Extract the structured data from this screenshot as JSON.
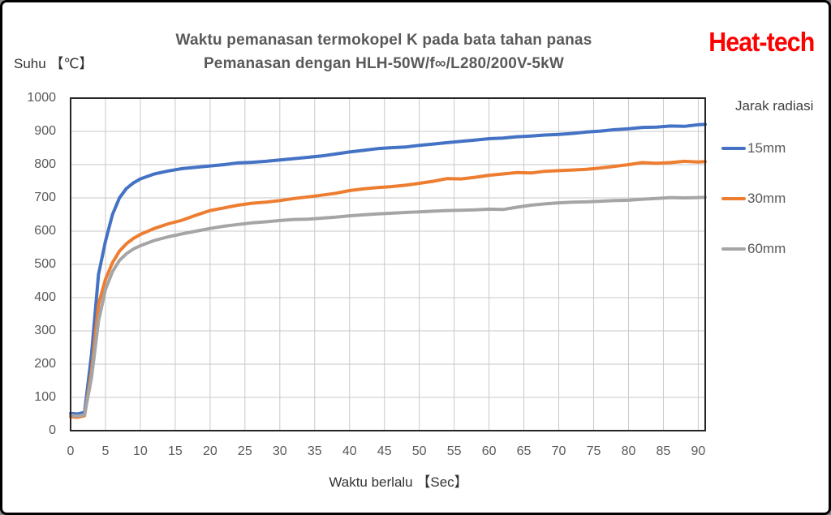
{
  "header": {
    "title_line1": "Waktu pemanasan termokopel K pada bata tahan panas",
    "title_line2": "Pemanasan dengan HLH-50W/f∞/L280/200V-5kW",
    "logo_text": "Heat-tech",
    "logo_color": "#FF0000"
  },
  "axes": {
    "y_axis_title": "Suhu 【℃】",
    "x_axis_title": "Waktu berlalu 【Sec】"
  },
  "legend": {
    "title": "Jarak radiasi"
  },
  "colors": {
    "series_blue": "#4472C4",
    "series_orange": "#ED7D31",
    "series_gray": "#A5A5A5",
    "gridline": "#C9C9C9",
    "plot_frame": "#262626",
    "tick_text": "#595959"
  },
  "chart_data": {
    "type": "line",
    "title": "Waktu pemanasan termokopel K pada bata tahan panas — Pemanasan dengan HLH-50W/f∞/L280/200V-5kW",
    "xlabel": "Waktu berlalu 【Sec】",
    "ylabel": "Suhu 【℃】",
    "xlim": [
      0,
      91
    ],
    "ylim": [
      0,
      1000
    ],
    "x_ticks": [
      0,
      5,
      10,
      15,
      20,
      25,
      30,
      35,
      40,
      45,
      50,
      55,
      60,
      65,
      70,
      75,
      80,
      85,
      90
    ],
    "y_ticks": [
      0,
      100,
      200,
      300,
      400,
      500,
      600,
      700,
      800,
      900,
      1000
    ],
    "grid": true,
    "legend_title": "Jarak radiasi",
    "legend_position": "right",
    "x": [
      0,
      1,
      2,
      3,
      4,
      5,
      6,
      7,
      8,
      9,
      10,
      12,
      14,
      16,
      18,
      20,
      22,
      24,
      26,
      28,
      30,
      32,
      34,
      36,
      38,
      40,
      42,
      44,
      46,
      48,
      50,
      52,
      54,
      56,
      58,
      60,
      62,
      64,
      66,
      68,
      70,
      72,
      74,
      76,
      78,
      80,
      82,
      84,
      86,
      88,
      90,
      91
    ],
    "series": [
      {
        "name": "15mm",
        "color": "#4472C4",
        "values": [
          52,
          50,
          55,
          230,
          470,
          570,
          650,
          700,
          728,
          745,
          757,
          772,
          781,
          788,
          792,
          796,
          800,
          805,
          807,
          810,
          814,
          818,
          822,
          826,
          832,
          838,
          843,
          848,
          851,
          853,
          858,
          862,
          866,
          870,
          874,
          878,
          880,
          884,
          886,
          889,
          891,
          894,
          898,
          901,
          905,
          908,
          912,
          913,
          916,
          915,
          920,
          921
        ]
      },
      {
        "name": "30mm",
        "color": "#ED7D31",
        "values": [
          42,
          40,
          45,
          180,
          380,
          455,
          505,
          540,
          562,
          578,
          590,
          608,
          622,
          633,
          648,
          662,
          670,
          678,
          684,
          687,
          692,
          698,
          703,
          708,
          714,
          722,
          727,
          731,
          734,
          738,
          744,
          750,
          758,
          757,
          762,
          768,
          772,
          776,
          775,
          780,
          782,
          784,
          786,
          790,
          795,
          800,
          806,
          804,
          806,
          810,
          808,
          809
        ]
      },
      {
        "name": "60mm",
        "color": "#A5A5A5",
        "values": [
          46,
          44,
          48,
          160,
          330,
          425,
          478,
          512,
          532,
          546,
          556,
          572,
          583,
          592,
          600,
          608,
          615,
          620,
          625,
          628,
          632,
          635,
          636,
          639,
          642,
          646,
          649,
          652,
          654,
          656,
          658,
          660,
          662,
          663,
          664,
          666,
          665,
          672,
          678,
          682,
          685,
          687,
          688,
          690,
          692,
          693,
          696,
          698,
          701,
          700,
          701,
          702
        ]
      }
    ]
  }
}
